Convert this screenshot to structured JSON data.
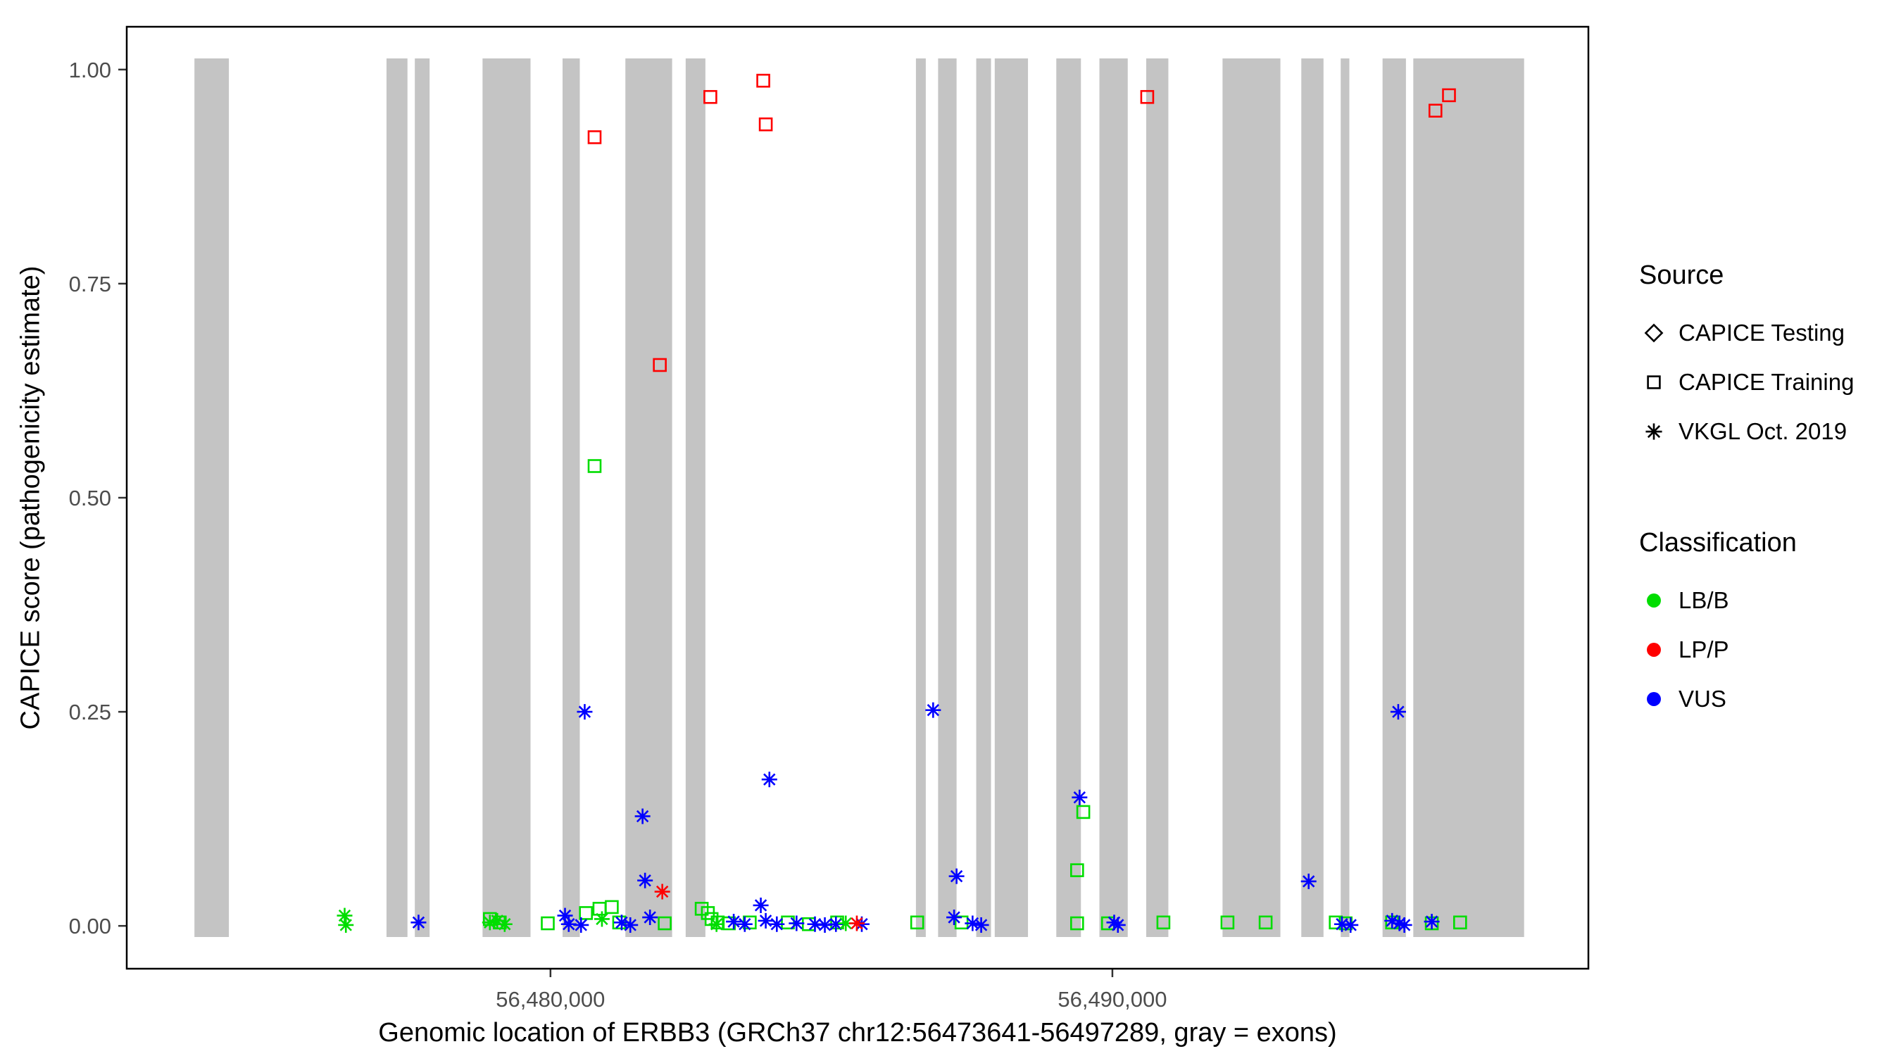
{
  "chart_data": {
    "type": "scatter",
    "title": "",
    "xlabel": "Genomic location of ERBB3 (GRCh37 chr12:56473641-56497289, gray = exons)",
    "ylabel": "CAPICE score (pathogenicity estimate)",
    "x_domain": [
      56472459,
      56498471
    ],
    "y_domain": [
      -0.05,
      1.05
    ],
    "x_ticks": [
      {
        "value": 56480000,
        "label": "56,480,000"
      },
      {
        "value": 56490000,
        "label": "56,490,000"
      }
    ],
    "y_ticks": [
      {
        "value": 0.0,
        "label": "0.00"
      },
      {
        "value": 0.25,
        "label": "0.25"
      },
      {
        "value": 0.5,
        "label": "0.50"
      },
      {
        "value": 0.75,
        "label": "0.75"
      },
      {
        "value": 1.0,
        "label": "1.00"
      }
    ],
    "grid": false,
    "exon_color": "#c4c4c4",
    "exon_y_span": [
      -0.013,
      1.013
    ],
    "exons": [
      [
        56473664,
        56474277
      ],
      [
        56477082,
        56477455
      ],
      [
        56477586,
        56477849
      ],
      [
        56478791,
        56479645
      ],
      [
        56480215,
        56480522
      ],
      [
        56481333,
        56482165
      ],
      [
        56482406,
        56482757
      ],
      [
        56486504,
        56486679
      ],
      [
        56486898,
        56487227
      ],
      [
        56487577,
        56487840
      ],
      [
        56487906,
        56488498
      ],
      [
        56489002,
        56489440
      ],
      [
        56489769,
        56490273
      ],
      [
        56490602,
        56490996
      ],
      [
        56491960,
        56492990
      ],
      [
        56493362,
        56493757
      ],
      [
        56494063,
        56494217
      ],
      [
        56494808,
        56495224
      ],
      [
        56495355,
        56497327
      ]
    ],
    "colors": {
      "LB/B": "#00DD00",
      "LP/P": "#FF0000",
      "VUS": "#0000FF"
    },
    "shapes": {
      "CAPICE Testing": "diamond",
      "CAPICE Training": "square",
      "VKGL Oct. 2019": "asterisk"
    },
    "points": [
      {
        "x": 56480785,
        "y": 0.921,
        "source": "CAPICE Training",
        "cls": "LP/P"
      },
      {
        "x": 56481946,
        "y": 0.655,
        "source": "CAPICE Training",
        "cls": "LP/P"
      },
      {
        "x": 56482845,
        "y": 0.968,
        "source": "CAPICE Training",
        "cls": "LP/P"
      },
      {
        "x": 56483787,
        "y": 0.987,
        "source": "CAPICE Training",
        "cls": "LP/P"
      },
      {
        "x": 56483831,
        "y": 0.936,
        "source": "CAPICE Training",
        "cls": "LP/P"
      },
      {
        "x": 56490620,
        "y": 0.968,
        "source": "CAPICE Training",
        "cls": "LP/P"
      },
      {
        "x": 56495749,
        "y": 0.952,
        "source": "CAPICE Training",
        "cls": "LP/P"
      },
      {
        "x": 56495990,
        "y": 0.97,
        "source": "CAPICE Training",
        "cls": "LP/P"
      },
      {
        "x": 56480785,
        "y": 0.537,
        "source": "CAPICE Training",
        "cls": "LB/B"
      },
      {
        "x": 56489482,
        "y": 0.133,
        "source": "CAPICE Training",
        "cls": "LB/B"
      },
      {
        "x": 56489372,
        "y": 0.065,
        "source": "CAPICE Training",
        "cls": "LB/B"
      },
      {
        "x": 56478922,
        "y": 0.008,
        "source": "CAPICE Training",
        "cls": "LB/B"
      },
      {
        "x": 56479097,
        "y": 0.004,
        "source": "CAPICE Training",
        "cls": "LB/B"
      },
      {
        "x": 56479952,
        "y": 0.003,
        "source": "CAPICE Training",
        "cls": "LB/B"
      },
      {
        "x": 56480631,
        "y": 0.015,
        "source": "CAPICE Training",
        "cls": "LB/B"
      },
      {
        "x": 56480872,
        "y": 0.02,
        "source": "CAPICE Training",
        "cls": "LB/B"
      },
      {
        "x": 56481091,
        "y": 0.022,
        "source": "CAPICE Training",
        "cls": "LB/B"
      },
      {
        "x": 56481223,
        "y": 0.004,
        "source": "CAPICE Training",
        "cls": "LB/B"
      },
      {
        "x": 56482033,
        "y": 0.003,
        "source": "CAPICE Training",
        "cls": "LB/B"
      },
      {
        "x": 56482691,
        "y": 0.02,
        "source": "CAPICE Training",
        "cls": "LB/B"
      },
      {
        "x": 56482801,
        "y": 0.015,
        "source": "CAPICE Training",
        "cls": "LB/B"
      },
      {
        "x": 56482867,
        "y": 0.008,
        "source": "CAPICE Training",
        "cls": "LB/B"
      },
      {
        "x": 56482976,
        "y": 0.004,
        "source": "CAPICE Training",
        "cls": "LB/B"
      },
      {
        "x": 56483174,
        "y": 0.003,
        "source": "CAPICE Training",
        "cls": "LB/B"
      },
      {
        "x": 56483546,
        "y": 0.004,
        "source": "CAPICE Training",
        "cls": "LB/B"
      },
      {
        "x": 56484225,
        "y": 0.004,
        "source": "CAPICE Training",
        "cls": "LB/B"
      },
      {
        "x": 56484598,
        "y": 0.002,
        "source": "CAPICE Training",
        "cls": "LB/B"
      },
      {
        "x": 56485102,
        "y": 0.004,
        "source": "CAPICE Training",
        "cls": "LB/B"
      },
      {
        "x": 56486526,
        "y": 0.004,
        "source": "CAPICE Training",
        "cls": "LB/B"
      },
      {
        "x": 56487315,
        "y": 0.004,
        "source": "CAPICE Training",
        "cls": "LB/B"
      },
      {
        "x": 56489372,
        "y": 0.003,
        "source": "CAPICE Training",
        "cls": "LB/B"
      },
      {
        "x": 56489922,
        "y": 0.003,
        "source": "CAPICE Training",
        "cls": "LB/B"
      },
      {
        "x": 56490908,
        "y": 0.004,
        "source": "CAPICE Training",
        "cls": "LB/B"
      },
      {
        "x": 56492048,
        "y": 0.004,
        "source": "CAPICE Training",
        "cls": "LB/B"
      },
      {
        "x": 56492727,
        "y": 0.004,
        "source": "CAPICE Training",
        "cls": "LB/B"
      },
      {
        "x": 56493975,
        "y": 0.004,
        "source": "CAPICE Training",
        "cls": "LB/B"
      },
      {
        "x": 56494151,
        "y": 0.003,
        "source": "CAPICE Training",
        "cls": "LB/B"
      },
      {
        "x": 56494978,
        "y": 0.004,
        "source": "CAPICE Training",
        "cls": "LB/B"
      },
      {
        "x": 56495684,
        "y": 0.003,
        "source": "CAPICE Training",
        "cls": "LB/B"
      },
      {
        "x": 56496188,
        "y": 0.004,
        "source": "CAPICE Training",
        "cls": "LB/B"
      },
      {
        "x": 56480609,
        "y": 0.25,
        "source": "VKGL Oct. 2019",
        "cls": "VUS"
      },
      {
        "x": 56481639,
        "y": 0.128,
        "source": "VKGL Oct. 2019",
        "cls": "VUS"
      },
      {
        "x": 56481683,
        "y": 0.053,
        "source": "VKGL Oct. 2019",
        "cls": "VUS"
      },
      {
        "x": 56483743,
        "y": 0.024,
        "source": "VKGL Oct. 2019",
        "cls": "VUS"
      },
      {
        "x": 56483896,
        "y": 0.171,
        "source": "VKGL Oct. 2019",
        "cls": "VUS"
      },
      {
        "x": 56486810,
        "y": 0.252,
        "source": "VKGL Oct. 2019",
        "cls": "VUS"
      },
      {
        "x": 56487227,
        "y": 0.058,
        "source": "VKGL Oct. 2019",
        "cls": "VUS"
      },
      {
        "x": 56489416,
        "y": 0.15,
        "source": "VKGL Oct. 2019",
        "cls": "VUS"
      },
      {
        "x": 56493493,
        "y": 0.052,
        "source": "VKGL Oct. 2019",
        "cls": "VUS"
      },
      {
        "x": 56495087,
        "y": 0.25,
        "source": "VKGL Oct. 2019",
        "cls": "VUS"
      },
      {
        "x": 56477652,
        "y": 0.004,
        "source": "VKGL Oct. 2019",
        "cls": "VUS"
      },
      {
        "x": 56480259,
        "y": 0.012,
        "source": "VKGL Oct. 2019",
        "cls": "VUS"
      },
      {
        "x": 56480325,
        "y": 0.002,
        "source": "VKGL Oct. 2019",
        "cls": "VUS"
      },
      {
        "x": 56480544,
        "y": 0.001,
        "source": "VKGL Oct. 2019",
        "cls": "VUS"
      },
      {
        "x": 56481267,
        "y": 0.004,
        "source": "VKGL Oct. 2019",
        "cls": "VUS"
      },
      {
        "x": 56481421,
        "y": 0.001,
        "source": "VKGL Oct. 2019",
        "cls": "VUS"
      },
      {
        "x": 56481771,
        "y": 0.01,
        "source": "VKGL Oct. 2019",
        "cls": "VUS"
      },
      {
        "x": 56483261,
        "y": 0.005,
        "source": "VKGL Oct. 2019",
        "cls": "VUS"
      },
      {
        "x": 56483458,
        "y": 0.002,
        "source": "VKGL Oct. 2019",
        "cls": "VUS"
      },
      {
        "x": 56483831,
        "y": 0.006,
        "source": "VKGL Oct. 2019",
        "cls": "VUS"
      },
      {
        "x": 56484028,
        "y": 0.002,
        "source": "VKGL Oct. 2019",
        "cls": "VUS"
      },
      {
        "x": 56484379,
        "y": 0.003,
        "source": "VKGL Oct. 2019",
        "cls": "VUS"
      },
      {
        "x": 56484707,
        "y": 0.002,
        "source": "VKGL Oct. 2019",
        "cls": "VUS"
      },
      {
        "x": 56484883,
        "y": 0.001,
        "source": "VKGL Oct. 2019",
        "cls": "VUS"
      },
      {
        "x": 56485080,
        "y": 0.002,
        "source": "VKGL Oct. 2019",
        "cls": "VUS"
      },
      {
        "x": 56485540,
        "y": 0.002,
        "source": "VKGL Oct. 2019",
        "cls": "VUS"
      },
      {
        "x": 56487183,
        "y": 0.01,
        "source": "VKGL Oct. 2019",
        "cls": "VUS"
      },
      {
        "x": 56487512,
        "y": 0.003,
        "source": "VKGL Oct. 2019",
        "cls": "VUS"
      },
      {
        "x": 56487665,
        "y": 0.001,
        "source": "VKGL Oct. 2019",
        "cls": "VUS"
      },
      {
        "x": 56490032,
        "y": 0.004,
        "source": "VKGL Oct. 2019",
        "cls": "VUS"
      },
      {
        "x": 56490098,
        "y": 0.001,
        "source": "VKGL Oct. 2019",
        "cls": "VUS"
      },
      {
        "x": 56494085,
        "y": 0.002,
        "source": "VKGL Oct. 2019",
        "cls": "VUS"
      },
      {
        "x": 56494239,
        "y": 0.001,
        "source": "VKGL Oct. 2019",
        "cls": "VUS"
      },
      {
        "x": 56494978,
        "y": 0.006,
        "source": "VKGL Oct. 2019",
        "cls": "VUS"
      },
      {
        "x": 56495109,
        "y": 0.003,
        "source": "VKGL Oct. 2019",
        "cls": "VUS"
      },
      {
        "x": 56495196,
        "y": 0.001,
        "source": "VKGL Oct. 2019",
        "cls": "VUS"
      },
      {
        "x": 56495684,
        "y": 0.005,
        "source": "VKGL Oct. 2019",
        "cls": "VUS"
      },
      {
        "x": 56476337,
        "y": 0.012,
        "source": "VKGL Oct. 2019",
        "cls": "LB/B"
      },
      {
        "x": 56476359,
        "y": 0.001,
        "source": "VKGL Oct. 2019",
        "cls": "LB/B"
      },
      {
        "x": 56478922,
        "y": 0.004,
        "source": "VKGL Oct. 2019",
        "cls": "LB/B"
      },
      {
        "x": 56479053,
        "y": 0.006,
        "source": "VKGL Oct. 2019",
        "cls": "LB/B"
      },
      {
        "x": 56479185,
        "y": 0.002,
        "source": "VKGL Oct. 2019",
        "cls": "LB/B"
      },
      {
        "x": 56480916,
        "y": 0.008,
        "source": "VKGL Oct. 2019",
        "cls": "LB/B"
      },
      {
        "x": 56482955,
        "y": 0.002,
        "source": "VKGL Oct. 2019",
        "cls": "LB/B"
      },
      {
        "x": 56485255,
        "y": 0.003,
        "source": "VKGL Oct. 2019",
        "cls": "LB/B"
      },
      {
        "x": 56481990,
        "y": 0.04,
        "source": "VKGL Oct. 2019",
        "cls": "LP/P"
      },
      {
        "x": 56485452,
        "y": 0.003,
        "source": "VKGL Oct. 2019",
        "cls": "LP/P"
      }
    ]
  },
  "legend": {
    "source": {
      "title": "Source",
      "items": [
        {
          "shape": "diamond",
          "label": "CAPICE Testing"
        },
        {
          "shape": "square",
          "label": "CAPICE Training"
        },
        {
          "shape": "asterisk",
          "label": "VKGL Oct. 2019"
        }
      ]
    },
    "classification": {
      "title": "Classification",
      "items": [
        {
          "cls": "LB/B",
          "label": "LB/B"
        },
        {
          "cls": "LP/P",
          "label": "LP/P"
        },
        {
          "cls": "VUS",
          "label": "VUS"
        }
      ]
    }
  }
}
